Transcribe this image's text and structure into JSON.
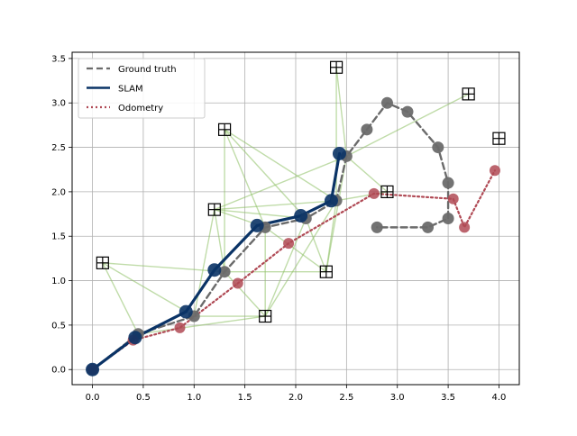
{
  "chart_data": {
    "type": "scatter",
    "title": "",
    "xlabel": "",
    "ylabel": "",
    "xlim": [
      -0.2,
      4.2
    ],
    "ylim": [
      -0.17,
      3.57
    ],
    "grid": true,
    "legend_position": "top-left",
    "x_ticks": [
      "0.0",
      "0.5",
      "1.0",
      "1.5",
      "2.0",
      "2.5",
      "3.0",
      "3.5",
      "4.0"
    ],
    "y_ticks": [
      "0.0",
      "0.5",
      "1.0",
      "1.5",
      "2.0",
      "2.5",
      "3.0",
      "3.5"
    ],
    "landmarks": [
      {
        "x": 0.1,
        "y": 1.2
      },
      {
        "x": 1.3,
        "y": 2.7
      },
      {
        "x": 1.2,
        "y": 1.8
      },
      {
        "x": 1.7,
        "y": 0.6
      },
      {
        "x": 2.3,
        "y": 1.1
      },
      {
        "x": 2.4,
        "y": 3.4
      },
      {
        "x": 2.9,
        "y": 2.0
      },
      {
        "x": 3.7,
        "y": 3.1
      },
      {
        "x": 4.0,
        "y": 2.6
      }
    ],
    "observations": [
      {
        "from": [
          0.45,
          0.4
        ],
        "to": [
          0.1,
          1.2
        ]
      },
      {
        "from": [
          0.45,
          0.4
        ],
        "to": [
          1.7,
          0.6
        ]
      },
      {
        "from": [
          1.0,
          0.6
        ],
        "to": [
          0.1,
          1.2
        ]
      },
      {
        "from": [
          1.0,
          0.6
        ],
        "to": [
          1.7,
          0.6
        ]
      },
      {
        "from": [
          1.0,
          0.6
        ],
        "to": [
          1.2,
          1.8
        ]
      },
      {
        "from": [
          1.3,
          1.1
        ],
        "to": [
          1.2,
          1.8
        ]
      },
      {
        "from": [
          1.3,
          1.1
        ],
        "to": [
          1.3,
          2.7
        ]
      },
      {
        "from": [
          1.3,
          1.1
        ],
        "to": [
          2.3,
          1.1
        ]
      },
      {
        "from": [
          1.3,
          1.1
        ],
        "to": [
          1.7,
          0.6
        ]
      },
      {
        "from": [
          1.3,
          1.1
        ],
        "to": [
          0.1,
          1.2
        ]
      },
      {
        "from": [
          1.7,
          1.6
        ],
        "to": [
          1.2,
          1.8
        ]
      },
      {
        "from": [
          1.7,
          1.6
        ],
        "to": [
          1.3,
          2.7
        ]
      },
      {
        "from": [
          1.7,
          1.6
        ],
        "to": [
          1.7,
          0.6
        ]
      },
      {
        "from": [
          1.7,
          1.6
        ],
        "to": [
          2.3,
          1.1
        ]
      },
      {
        "from": [
          2.1,
          1.7
        ],
        "to": [
          1.2,
          1.8
        ]
      },
      {
        "from": [
          2.1,
          1.7
        ],
        "to": [
          1.3,
          2.7
        ]
      },
      {
        "from": [
          2.1,
          1.7
        ],
        "to": [
          2.3,
          1.1
        ]
      },
      {
        "from": [
          2.1,
          1.7
        ],
        "to": [
          1.7,
          0.6
        ]
      },
      {
        "from": [
          2.4,
          1.9
        ],
        "to": [
          1.2,
          1.8
        ]
      },
      {
        "from": [
          2.4,
          1.9
        ],
        "to": [
          2.4,
          3.4
        ]
      },
      {
        "from": [
          2.4,
          1.9
        ],
        "to": [
          2.9,
          2.0
        ]
      },
      {
        "from": [
          2.4,
          1.9
        ],
        "to": [
          2.3,
          1.1
        ]
      },
      {
        "from": [
          2.4,
          1.9
        ],
        "to": [
          1.3,
          2.7
        ]
      },
      {
        "from": [
          2.4,
          1.9
        ],
        "to": [
          1.7,
          0.6
        ]
      },
      {
        "from": [
          2.5,
          2.4
        ],
        "to": [
          2.4,
          3.4
        ]
      },
      {
        "from": [
          2.5,
          2.4
        ],
        "to": [
          3.7,
          3.1
        ]
      },
      {
        "from": [
          2.5,
          2.4
        ],
        "to": [
          2.9,
          2.0
        ]
      },
      {
        "from": [
          2.5,
          2.4
        ],
        "to": [
          1.2,
          1.8
        ]
      },
      {
        "from": [
          2.5,
          2.4
        ],
        "to": [
          2.3,
          1.1
        ]
      }
    ],
    "series": [
      {
        "name": "Ground truth",
        "color": "#6b6b6b",
        "style": "dashed",
        "x": [
          0.0,
          0.45,
          1.0,
          1.3,
          1.7,
          2.1,
          2.4,
          2.5,
          2.7,
          2.9,
          3.1,
          3.4,
          3.5,
          3.5,
          3.3,
          2.8
        ],
        "y": [
          0.0,
          0.4,
          0.6,
          1.1,
          1.6,
          1.7,
          1.9,
          2.4,
          2.7,
          3.0,
          2.9,
          2.5,
          2.1,
          1.7,
          1.6,
          1.6
        ]
      },
      {
        "name": "SLAM",
        "color": "#0a3366",
        "style": "solid",
        "x": [
          0.0,
          0.42,
          0.92,
          1.2,
          1.62,
          2.05,
          2.35,
          2.43
        ],
        "y": [
          0.0,
          0.36,
          0.65,
          1.12,
          1.62,
          1.73,
          1.9,
          2.43
        ]
      },
      {
        "name": "Odometry",
        "color": "#b04a55",
        "style": "dotted",
        "x": [
          0.0,
          0.4,
          0.86,
          1.43,
          1.93,
          2.77,
          3.55,
          3.66,
          3.96
        ],
        "y": [
          0.0,
          0.33,
          0.47,
          0.97,
          1.42,
          1.98,
          1.92,
          1.6,
          2.24
        ]
      }
    ]
  }
}
